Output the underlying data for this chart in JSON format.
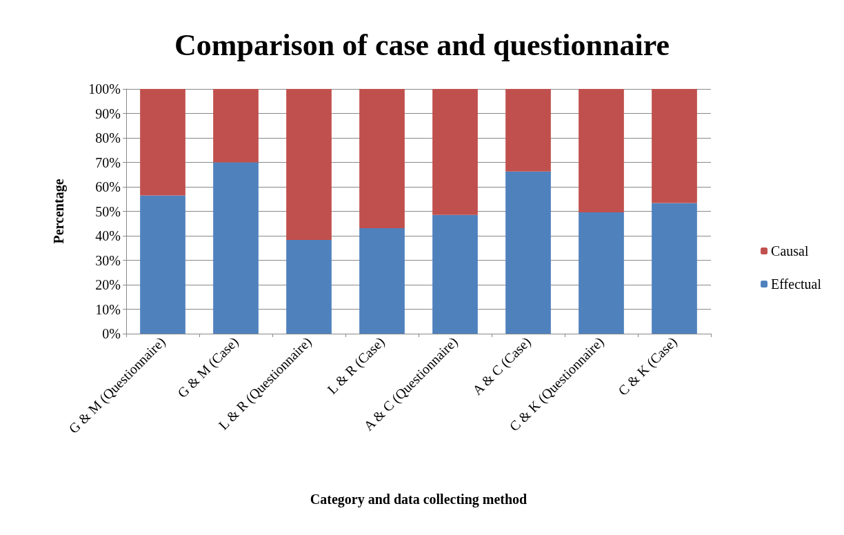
{
  "chart_data": {
    "type": "bar",
    "title": "Comparison of case and questionnaire",
    "xlabel": "Category and data collecting method",
    "ylabel": "Percentage",
    "categories": [
      "G & M (Questionnaire)",
      "G & M (Case)",
      "L & R (Questionnaire)",
      "L & R (Case)",
      "A & C (Questionnaire)",
      "A & C (Case)",
      "C & K (Questionnaire)",
      "C & K (Case)"
    ],
    "series": [
      {
        "name": "Effectual",
        "color": "#4f81bd",
        "values": [
          56.5,
          70,
          38.3,
          43.1,
          48.5,
          66.3,
          49.6,
          53.4
        ]
      },
      {
        "name": "Causal",
        "color": "#c0504d",
        "values": [
          43.5,
          30,
          61.7,
          56.9,
          51.5,
          33.7,
          50.4,
          46.6
        ]
      }
    ],
    "stacked": true,
    "ylim": [
      0,
      100
    ],
    "yticks": [
      {
        "value": 0,
        "label": "0%"
      },
      {
        "value": 10,
        "label": "10%"
      },
      {
        "value": 20,
        "label": "20%"
      },
      {
        "value": 30,
        "label": "30%"
      },
      {
        "value": 40,
        "label": "40%"
      },
      {
        "value": 50,
        "label": "50%"
      },
      {
        "value": 60,
        "label": "60%"
      },
      {
        "value": 70,
        "label": "70%"
      },
      {
        "value": 80,
        "label": "80%"
      },
      {
        "value": 90,
        "label": "90%"
      },
      {
        "value": 100,
        "label": "100%"
      }
    ],
    "grid": "y",
    "legend": "right"
  }
}
